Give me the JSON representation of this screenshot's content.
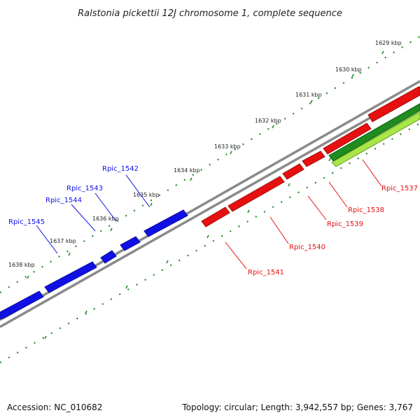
{
  "title": "Ralstonia pickettii 12J chromosome 1, complete sequence",
  "footer": {
    "accession": "Accession: NC_010682",
    "summary": "Topology: circular; Length: 3,942,557 bp; Genes: 3,767"
  },
  "colors": {
    "backbone": "#8a8a8a",
    "forward_gene": "#1010e6",
    "reverse_gene": "#e61010",
    "feature_dark": "#1e8c1e",
    "feature_light": "#a8e64a",
    "ruler_dots": "#2a8a2a"
  },
  "ticks": [
    "1629 kbp",
    "1630 kbp",
    "1631 kbp",
    "1632 kbp",
    "1633 kbp",
    "1634 kbp",
    "1635 kbp",
    "1636 kbp",
    "1637 kbp",
    "1638 kbp"
  ],
  "genes": {
    "forward": [
      "Rpic_1542",
      "Rpic_1543",
      "Rpic_1544",
      "Rpic_1545"
    ],
    "reverse": [
      "Rpic_1537",
      "Rpic_1538",
      "Rpic_1539",
      "Rpic_1540",
      "Rpic_1541"
    ]
  }
}
